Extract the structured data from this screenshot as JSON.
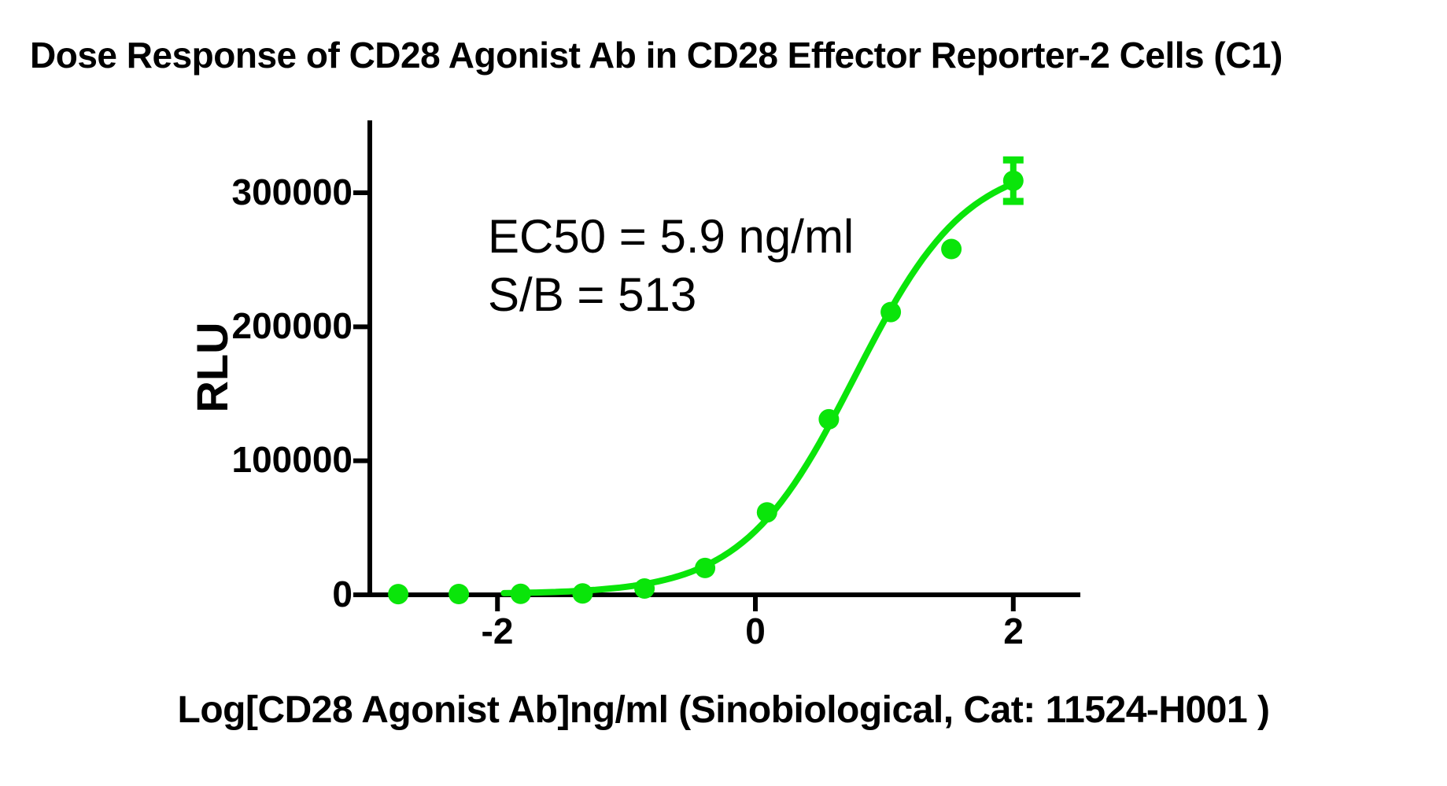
{
  "page": {
    "background": "#ffffff",
    "text_color": "#000000"
  },
  "chart_data": {
    "type": "scatter",
    "title": "Dose Response of CD28 Agonist Ab in CD28 Effector Reporter-2 Cells (C1)",
    "xlabel": "Log[CD28 Agonist Ab]ng/ml (Sinobiological, Cat: 11524-H001 )",
    "ylabel": "RLU",
    "annotation": {
      "line1": "EC50 = 5.9 ng/ml",
      "line2": "S/B = 513"
    },
    "ec50_ng_ml": 5.9,
    "signal_to_background": 513,
    "grid": false,
    "legend_position": "none",
    "axis_color": "#000000",
    "xlim": [
      -2.99,
      2.52
    ],
    "ylim": [
      0,
      354000
    ],
    "x_ticks": [
      {
        "value": -2,
        "label": "-2"
      },
      {
        "value": 0,
        "label": "0"
      },
      {
        "value": 2,
        "label": "2"
      }
    ],
    "y_ticks": [
      {
        "value": 300000,
        "label": "300000"
      },
      {
        "value": 200000,
        "label": "200000"
      },
      {
        "value": 100000,
        "label": "100000"
      },
      {
        "value": 0,
        "label": "0"
      }
    ],
    "series": [
      {
        "name": "CD28 Agonist Ab",
        "color": "#0ae50a",
        "marker": "circle",
        "points": [
          {
            "log_x": -2.77,
            "rlu": 500
          },
          {
            "log_x": -2.3,
            "rlu": 600
          },
          {
            "log_x": -1.82,
            "rlu": 700
          },
          {
            "log_x": -1.34,
            "rlu": 1000
          },
          {
            "log_x": -0.86,
            "rlu": 4700
          },
          {
            "log_x": -0.39,
            "rlu": 20000
          },
          {
            "log_x": 0.09,
            "rlu": 61500
          },
          {
            "log_x": 0.57,
            "rlu": 131000
          },
          {
            "log_x": 1.05,
            "rlu": 211000
          },
          {
            "log_x": 1.52,
            "rlu": 258000
          },
          {
            "log_x": 2.0,
            "rlu": 309000
          }
        ],
        "error_bar": {
          "point_index": 10,
          "plus": 15500,
          "minus": 15500
        }
      }
    ],
    "fit": {
      "model": "4PL sigmoid (estimated from drawn curve)",
      "bottom": 600,
      "top": 325000,
      "log_ec50": 0.771,
      "hill": 1.0,
      "draw_range": [
        -1.95,
        2.0
      ]
    }
  }
}
